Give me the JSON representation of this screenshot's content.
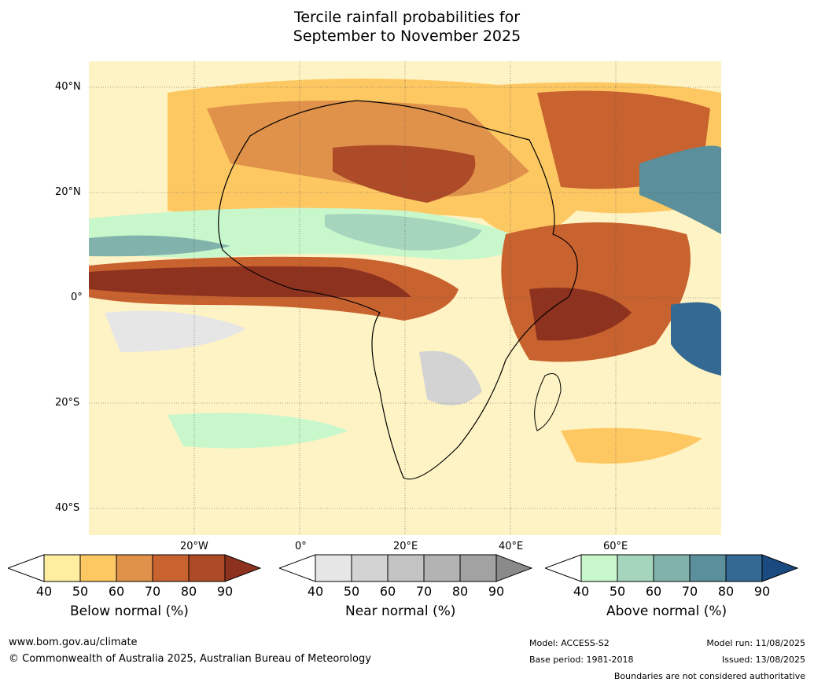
{
  "title_line1": "Tercile rainfall probabilities for",
  "title_line2": "September to November 2025",
  "lat_labels": [
    "40°N",
    "20°N",
    "0°",
    "20°S",
    "40°S"
  ],
  "lon_labels": [
    "20°W",
    "0°",
    "20°E",
    "40°E",
    "60°E"
  ],
  "colorbars": [
    {
      "label": "Below normal (%)",
      "ticks": [
        "40",
        "50",
        "60",
        "70",
        "80",
        "90"
      ],
      "colors": [
        "#ffffff",
        "#ffeea0",
        "#fdc862",
        "#e0914a",
        "#c8622f",
        "#ad4a28",
        "#8e3220"
      ]
    },
    {
      "label": "Near normal (%)",
      "ticks": [
        "40",
        "50",
        "60",
        "70",
        "80",
        "90"
      ],
      "colors": [
        "#ffffff",
        "#e6e6e6",
        "#d3d3d3",
        "#c3c3c3",
        "#b3b3b3",
        "#a2a2a2",
        "#8a8a8a"
      ]
    },
    {
      "label": "Above normal (%)",
      "ticks": [
        "40",
        "50",
        "60",
        "70",
        "80",
        "90"
      ],
      "colors": [
        "#ffffff",
        "#c9f7cc",
        "#a5d6bd",
        "#81b3ac",
        "#5a8f9b",
        "#336992",
        "#1a4a80"
      ]
    }
  ],
  "footer": {
    "website": "www.bom.gov.au/climate",
    "copyright": "© Commonwealth of Australia 2025, Australian Bureau of Meteorology",
    "model": "Model: ACCESS-S2",
    "base_period": "Base period: 1981-2018",
    "model_run": "Model run: 11/08/2025",
    "issued": "Issued: 13/08/2025",
    "disclaimer": "Boundaries are not considered authoritative"
  },
  "palette": {
    "below": [
      "#ffeea0",
      "#fdc862",
      "#e0914a",
      "#c8622f",
      "#ad4a28",
      "#8e3220"
    ],
    "near": [
      "#e6e6e6",
      "#d3d3d3"
    ],
    "above": [
      "#c9f7cc",
      "#a5d6bd",
      "#81b3ac",
      "#5a8f9b",
      "#336992"
    ]
  }
}
